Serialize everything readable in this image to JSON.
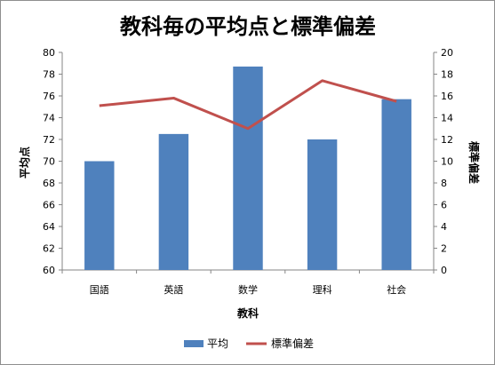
{
  "chart_data": {
    "type": "bar",
    "title": "教科毎の平均点と標準偏差",
    "xlabel": "教科",
    "ylabel": "平均点",
    "y2label": "標準偏差",
    "categories": [
      "国語",
      "英語",
      "数学",
      "理科",
      "社会"
    ],
    "ylim": [
      60,
      80
    ],
    "y2lim": [
      0,
      20
    ],
    "yticks": [
      "60",
      "62",
      "64",
      "66",
      "68",
      "70",
      "72",
      "74",
      "76",
      "78",
      "80"
    ],
    "y2ticks": [
      "0",
      "2",
      "4",
      "6",
      "8",
      "10",
      "12",
      "14",
      "16",
      "18",
      "20"
    ],
    "series": [
      {
        "name": "平均",
        "type": "bar",
        "axis": "left",
        "color": "#4f81bd",
        "values": [
          70,
          72.5,
          78.7,
          72,
          75.7
        ]
      },
      {
        "name": "標準偏差",
        "type": "line",
        "axis": "right",
        "color": "#c0504d",
        "values": [
          15.1,
          15.8,
          13,
          17.4,
          15.5
        ]
      }
    ],
    "grid": false,
    "legend": "bottom"
  }
}
